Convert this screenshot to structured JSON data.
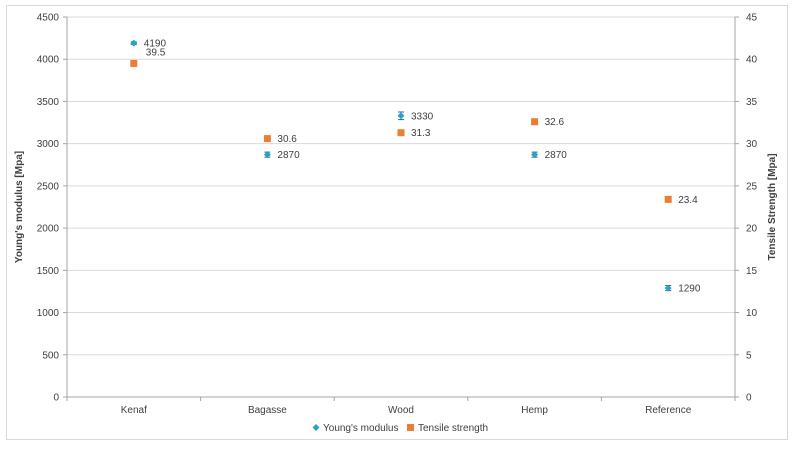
{
  "chart_data": {
    "type": "scatter",
    "title": "",
    "categories": [
      "Kenaf",
      "Bagasse",
      "Wood",
      "Hemp",
      "Reference"
    ],
    "ylabel": "Young's modulus [Mpa]",
    "y2label": "Tensile Strength [Mpa]",
    "ylim": [
      0,
      4500
    ],
    "y2lim": [
      0,
      45
    ],
    "yticks": [
      0,
      500,
      1000,
      1500,
      2000,
      2500,
      3000,
      3500,
      4000,
      4500
    ],
    "y2ticks": [
      0,
      5,
      10,
      15,
      20,
      25,
      30,
      35,
      40,
      45
    ],
    "grid": true,
    "legend_position": "bottom",
    "series": [
      {
        "name": "Young's modulus",
        "axis": "left",
        "marker": "diamond",
        "color": "#2e9fc9",
        "values": [
          4190,
          2870,
          3330,
          2870,
          1290
        ],
        "labels": [
          "4190",
          "2870",
          "3330",
          "2870",
          "1290"
        ],
        "error": [
          15,
          30,
          45,
          30,
          30
        ]
      },
      {
        "name": "Tensile strength",
        "axis": "right",
        "marker": "square",
        "color": "#ee7d31",
        "values": [
          39.5,
          30.6,
          31.3,
          32.6,
          23.4
        ],
        "labels": [
          "39.5",
          "30.6",
          "31.3",
          "32.6",
          "23.4"
        ]
      }
    ]
  }
}
